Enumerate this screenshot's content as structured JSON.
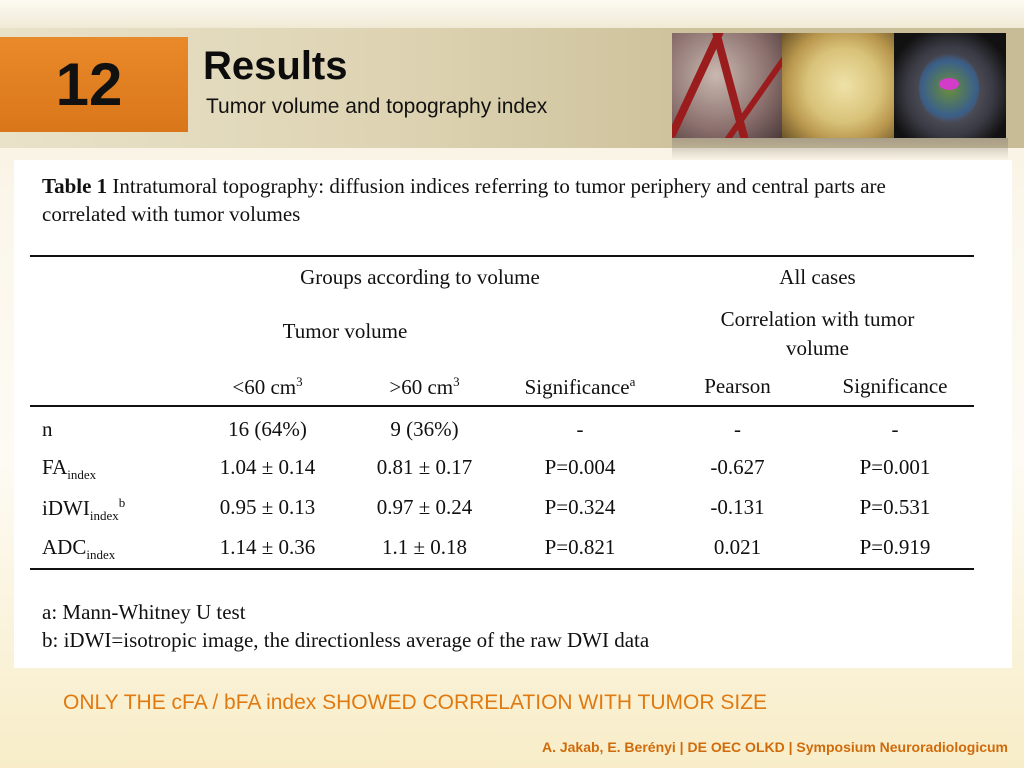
{
  "slide": {
    "number": "12",
    "title": "Results",
    "subtitle": "Tumor volume and topography index"
  },
  "table": {
    "caption_bold": "Table 1",
    "caption_text": " Intratumoral topography: diffusion indices referring to tumor periphery and central parts are correlated with tumor volumes",
    "header": {
      "groups": "Groups according to volume",
      "all_cases": "All cases",
      "tumor_volume": "Tumor volume",
      "correlation": "Correlation with tumor volume",
      "col_lt60": "<60 cm",
      "col_lt60_sup": "3",
      "col_gt60": ">60 cm",
      "col_gt60_sup": "3",
      "col_sig": "Significance",
      "col_sig_sup": "a",
      "col_pearson": "Pearson",
      "col_sig2": "Significance"
    },
    "rows": [
      {
        "label": "n",
        "sub": "",
        "sup": "",
        "lt60": "16 (64%)",
        "gt60": "9 (36%)",
        "sig": "-",
        "pearson": "-",
        "sig2": "-"
      },
      {
        "label": "FA",
        "sub": "index",
        "sup": "",
        "lt60": "1.04 ± 0.14",
        "gt60": "0.81 ± 0.17",
        "sig": "P=0.004",
        "pearson": "-0.627",
        "sig2": "P=0.001"
      },
      {
        "label": "iDWI",
        "sub": "index",
        "sup": "b",
        "lt60": "0.95 ± 0.13",
        "gt60": "0.97 ± 0.24",
        "sig": "P=0.324",
        "pearson": "-0.131",
        "sig2": "P=0.531"
      },
      {
        "label": "ADC",
        "sub": "index",
        "sup": "",
        "lt60": "1.14 ± 0.36",
        "gt60": "1.1 ± 0.18",
        "sig": "P=0.821",
        "pearson": "0.021",
        "sig2": "P=0.919"
      }
    ],
    "footnotes": [
      "a: Mann-Whitney U test",
      "b: iDWI=isotropic image, the directionless average of the raw DWI data"
    ]
  },
  "conclusion": "ONLY THE cFA / bFA index SHOWED CORRELATION WITH TUMOR SIZE",
  "footer": "A. Jakab, E. Berényi | DE OEC OLKD | Symposium Neuroradiologicum",
  "colors": {
    "accent_orange": "#e07a10",
    "number_box": "#e0811f"
  },
  "images": [
    "vessels-image",
    "tumor-specimen-image",
    "mri-dti-image"
  ]
}
